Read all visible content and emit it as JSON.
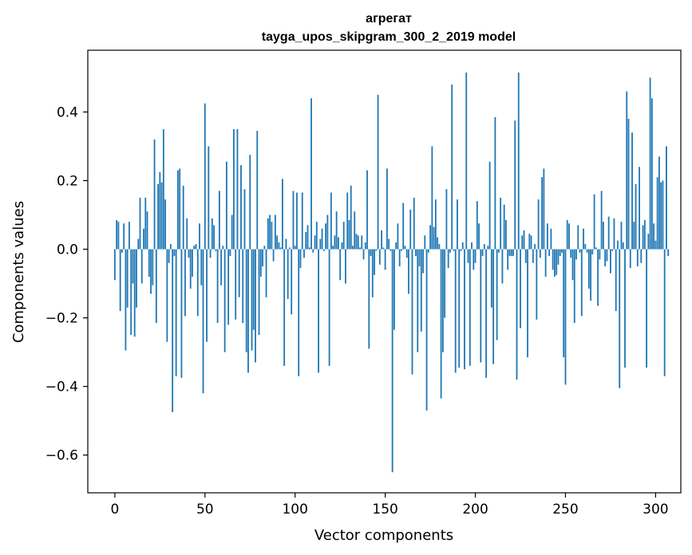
{
  "chart_data": {
    "type": "bar",
    "title": "агрегат",
    "subtitle": "tayga_upos_skipgram_300_2_2019 model",
    "xlabel": "Vector components",
    "ylabel": "Components values",
    "xlim": [
      -15,
      314
    ],
    "ylim": [
      -0.71,
      0.58
    ],
    "xticks": [
      0,
      50,
      100,
      150,
      200,
      250,
      300
    ],
    "yticks": [
      -0.6,
      -0.4,
      -0.2,
      0.0,
      0.2,
      0.4
    ],
    "ytick_labels": [
      "−0.6",
      "−0.4",
      "−0.2",
      "0.0",
      "0.2",
      "0.4"
    ],
    "bar_color": "#1f77b4",
    "values": [
      -0.09,
      0.085,
      0.08,
      -0.18,
      -0.01,
      0.075,
      -0.295,
      -0.17,
      0.08,
      -0.25,
      -0.1,
      -0.255,
      -0.17,
      0.03,
      0.15,
      -0.1,
      0.06,
      0.15,
      0.11,
      -0.08,
      -0.13,
      -0.105,
      0.32,
      -0.215,
      0.19,
      0.225,
      0.195,
      0.35,
      0.145,
      -0.27,
      -0.04,
      0.015,
      -0.475,
      -0.02,
      -0.37,
      0.23,
      0.235,
      -0.375,
      0.185,
      -0.195,
      0.09,
      -0.025,
      -0.115,
      -0.08,
      0.01,
      0.015,
      -0.195,
      0.075,
      -0.105,
      -0.42,
      0.425,
      -0.27,
      0.3,
      -0.025,
      0.09,
      0.07,
      -0.005,
      -0.215,
      0.17,
      -0.105,
      0.01,
      -0.3,
      0.255,
      -0.22,
      -0.02,
      0.1,
      0.35,
      -0.205,
      0.35,
      -0.14,
      0.245,
      -0.215,
      0.175,
      -0.3,
      -0.36,
      0.275,
      -0.295,
      -0.235,
      -0.33,
      0.345,
      -0.25,
      -0.08,
      -0.05,
      0.01,
      -0.14,
      0.09,
      0.1,
      0.08,
      -0.035,
      0.1,
      0.04,
      0.02,
      0.005,
      0.205,
      -0.34,
      0.03,
      -0.145,
      0.005,
      -0.19,
      0.17,
      0.01,
      0.165,
      -0.37,
      -0.055,
      0.165,
      -0.025,
      0.05,
      0.07,
      0.005,
      0.44,
      -0.01,
      0.04,
      0.08,
      -0.36,
      0.03,
      0.06,
      -0.005,
      0.075,
      0.1,
      -0.34,
      0.165,
      0.01,
      0.04,
      0.11,
      0.035,
      -0.09,
      0.02,
      0.08,
      -0.1,
      0.165,
      0.085,
      0.185,
      0.01,
      0.11,
      0.045,
      0.04,
      0.005,
      0.04,
      -0.03,
      0.02,
      0.23,
      -0.29,
      -0.02,
      -0.14,
      -0.075,
      -0.005,
      0.45,
      -0.045,
      0.055,
      0.005,
      -0.06,
      0.235,
      0.03,
      -0.005,
      -0.65,
      -0.235,
      0.02,
      0.075,
      -0.05,
      -0.005,
      0.135,
      0.01,
      -0.025,
      -0.13,
      0.115,
      -0.365,
      0.15,
      -0.02,
      -0.3,
      -0.05,
      -0.24,
      -0.07,
      0.04,
      -0.47,
      -0.01,
      0.07,
      0.3,
      0.065,
      0.145,
      0.035,
      0.015,
      -0.435,
      -0.3,
      -0.2,
      0.175,
      -0.055,
      -0.01,
      0.48,
      -0.005,
      -0.36,
      0.145,
      -0.345,
      -0.005,
      0.02,
      -0.35,
      0.515,
      -0.04,
      -0.34,
      0.02,
      -0.06,
      -0.04,
      0.14,
      0.075,
      -0.33,
      -0.02,
      0.015,
      -0.375,
      0.01,
      0.255,
      -0.17,
      -0.335,
      0.385,
      -0.265,
      -0.01,
      0.15,
      -0.1,
      0.13,
      0.085,
      -0.06,
      -0.02,
      -0.02,
      -0.02,
      0.375,
      -0.38,
      0.515,
      -0.23,
      0.04,
      0.055,
      -0.04,
      -0.315,
      0.045,
      0.04,
      -0.04,
      0.015,
      -0.205,
      0.145,
      -0.025,
      0.21,
      0.235,
      -0.08,
      0.075,
      -0.02,
      0.06,
      -0.06,
      -0.08,
      -0.075,
      -0.045,
      -0.02,
      -0.01,
      -0.315,
      -0.395,
      0.085,
      0.075,
      -0.025,
      -0.09,
      -0.215,
      -0.03,
      0.07,
      -0.01,
      -0.195,
      0.06,
      0.015,
      -0.01,
      -0.115,
      -0.15,
      -0.015,
      0.16,
      0.005,
      -0.165,
      -0.03,
      0.17,
      0.08,
      -0.05,
      -0.035,
      0.095,
      -0.07,
      -0.005,
      0.09,
      -0.18,
      0.025,
      -0.405,
      0.08,
      0.02,
      -0.345,
      0.46,
      0.38,
      -0.055,
      0.34,
      0.08,
      0.19,
      -0.05,
      0.24,
      -0.04,
      0.07,
      0.085,
      -0.345,
      0.045,
      0.5,
      0.44,
      0.075,
      0.025,
      0.21,
      0.27,
      0.195,
      0.2,
      -0.37,
      0.3,
      -0.02
    ]
  }
}
